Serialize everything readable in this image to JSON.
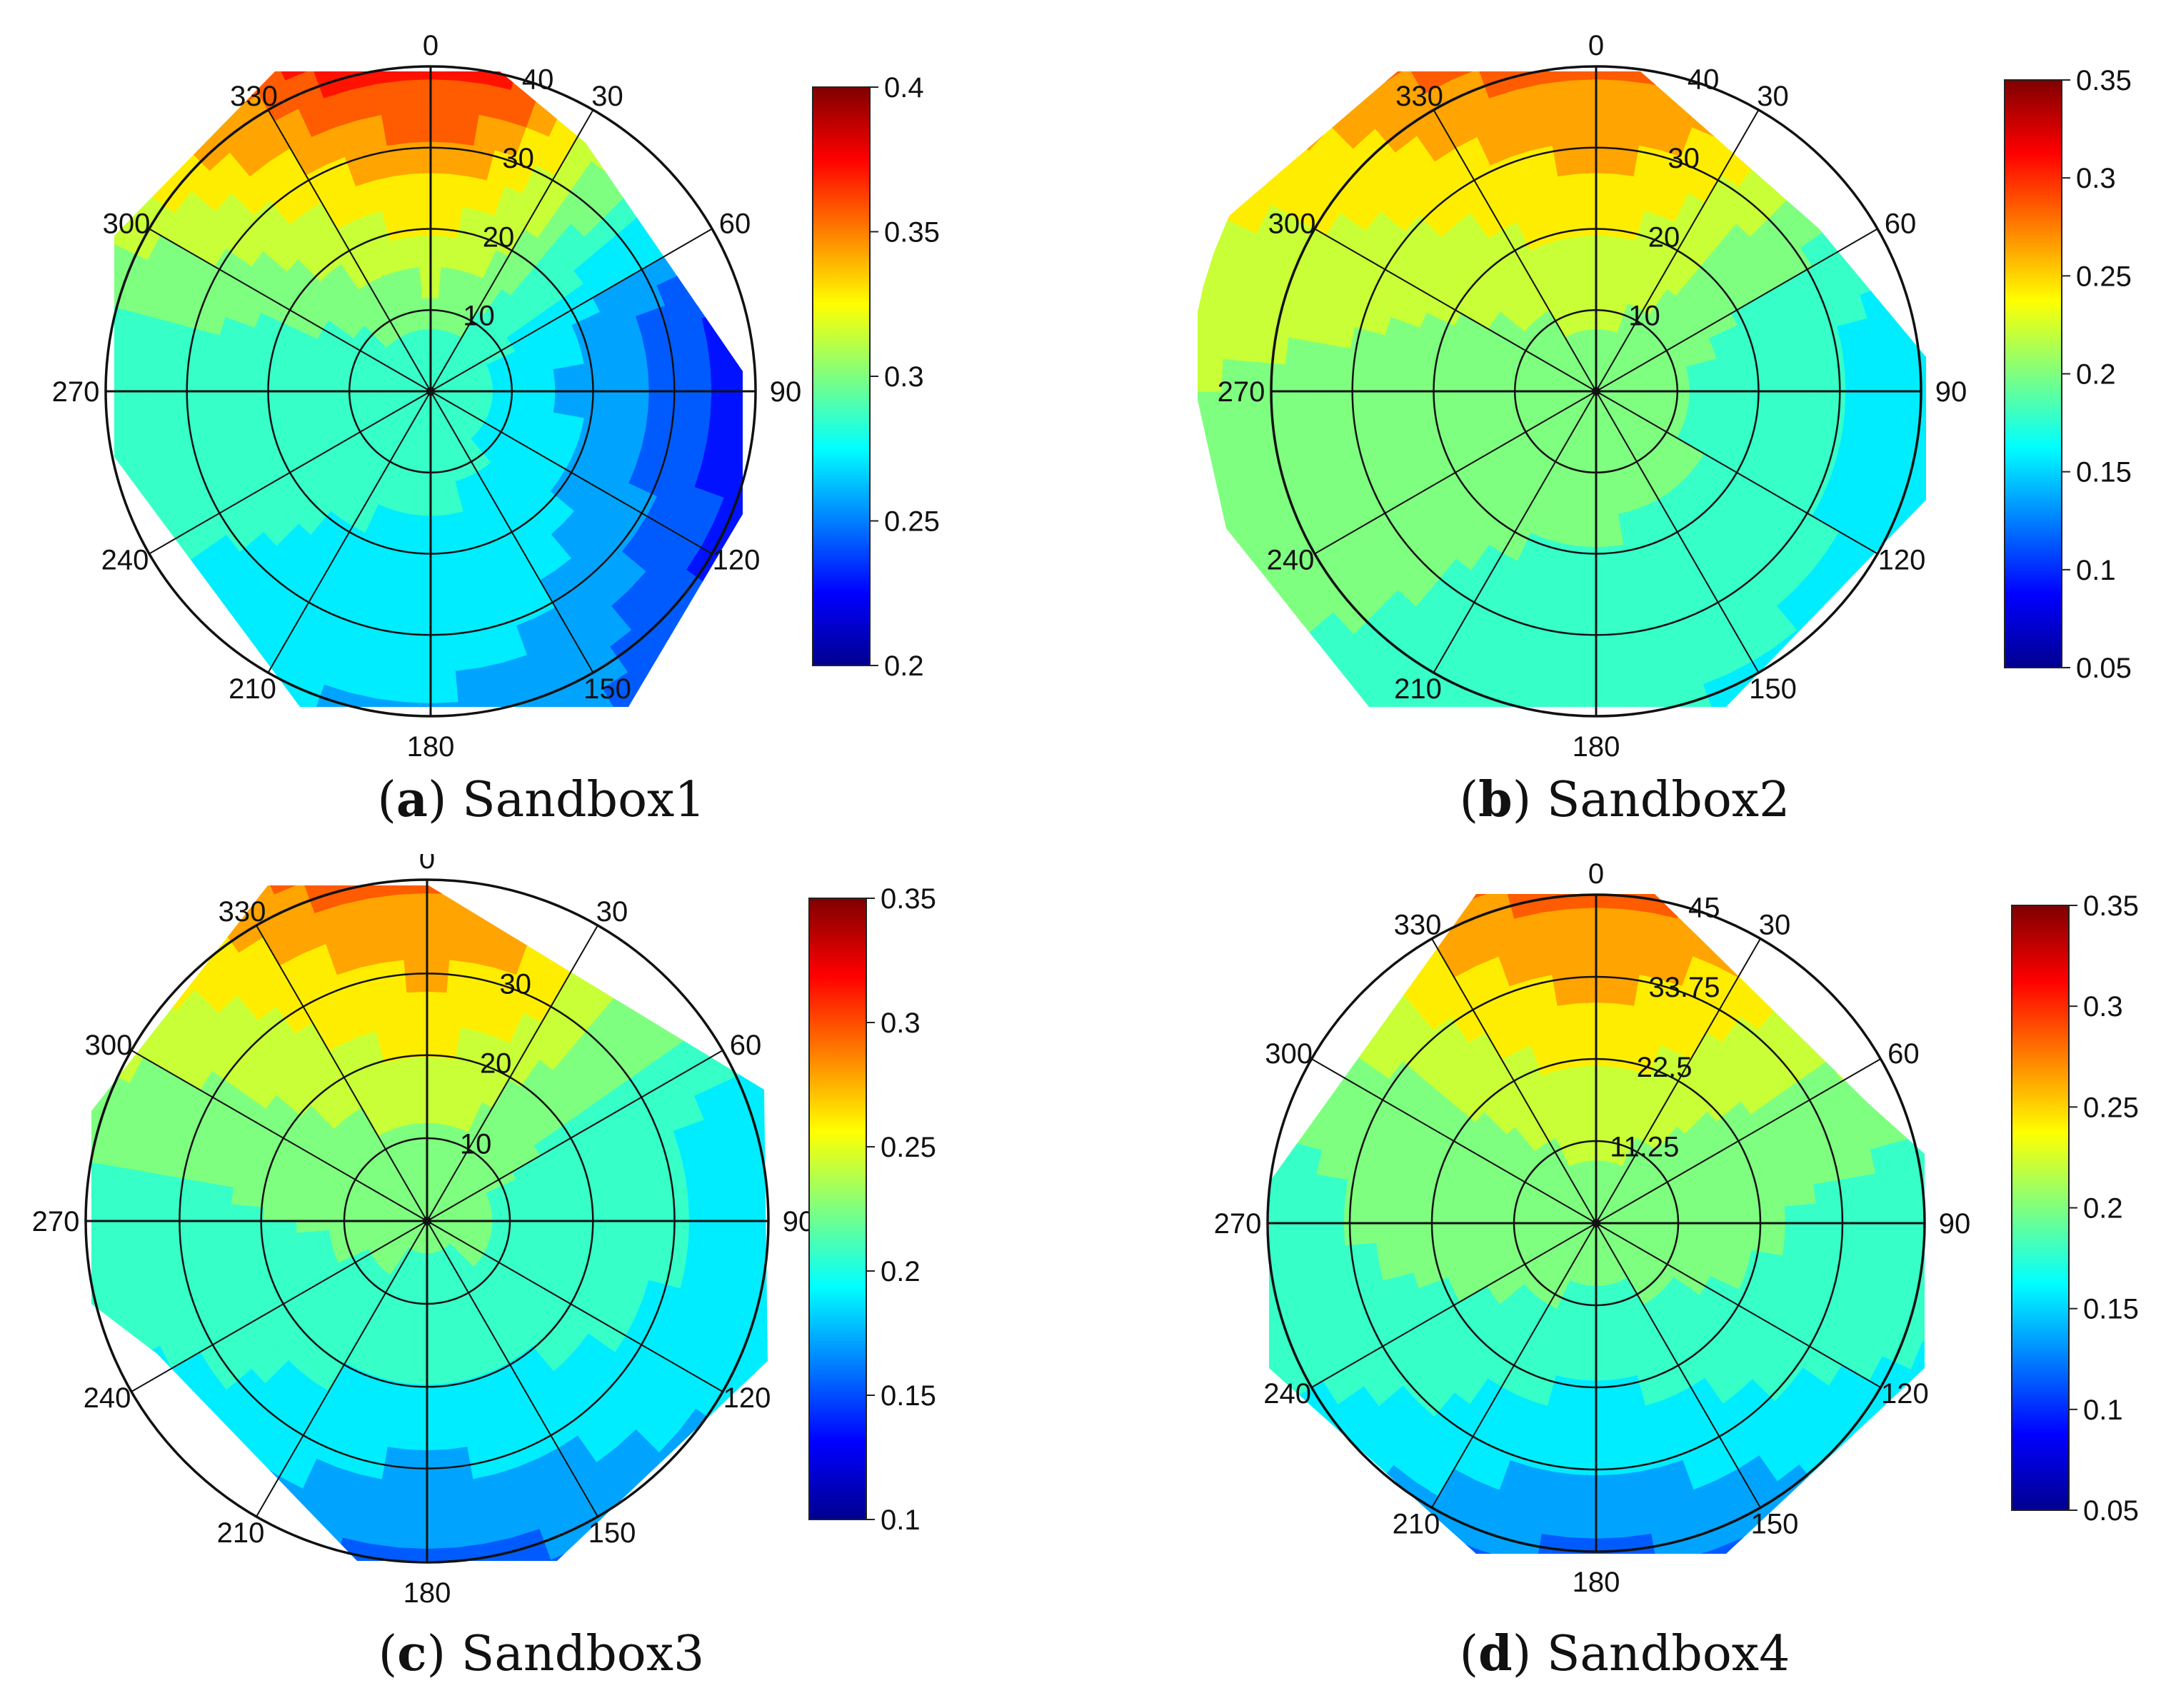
{
  "figure": "Four polar contour plots",
  "colors": {
    "jet": [
      "#00008f",
      "#0000ff",
      "#007fff",
      "#00ffff",
      "#7fff7f",
      "#ffff00",
      "#ff7f00",
      "#ff0000",
      "#7f0000"
    ],
    "axis": "#111111",
    "grid": "#111111"
  },
  "chart_data": [
    {
      "type": "heatmap",
      "subtype": "polar-contour",
      "panel_letter": "a",
      "title": "Sandbox1",
      "angle_labels": [
        "0",
        "30",
        "60",
        "90",
        "120",
        "150",
        "180",
        "210",
        "240",
        "270",
        "300",
        "330"
      ],
      "radial_ticks": [
        "10",
        "20",
        "30",
        "40"
      ],
      "rlim": [
        0,
        40
      ],
      "colorbar": {
        "range": [
          0.2,
          0.4
        ],
        "ticks": [
          "0.2",
          "0.25",
          "0.3",
          "0.35",
          "0.4"
        ]
      },
      "field": {
        "north": 0.4,
        "south": 0.255,
        "east": 0.205,
        "west": 0.285,
        "center": 0.285,
        "north_peak_deg": 355
      }
    },
    {
      "type": "heatmap",
      "subtype": "polar-contour",
      "panel_letter": "b",
      "title": "Sandbox2",
      "angle_labels": [
        "0",
        "30",
        "60",
        "90",
        "120",
        "150",
        "180",
        "210",
        "240",
        "270",
        "300",
        "330"
      ],
      "radial_ticks": [
        "10",
        "20",
        "30",
        "40"
      ],
      "rlim": [
        0,
        40
      ],
      "colorbar": {
        "range": [
          0.05,
          0.35
        ],
        "ticks": [
          "0.05",
          "0.1",
          "0.15",
          "0.2",
          "0.25",
          "0.3",
          "0.35"
        ]
      },
      "field": {
        "north": 0.31,
        "south": 0.16,
        "east": 0.14,
        "west": 0.21,
        "center": 0.2,
        "north_peak_deg": 355
      }
    },
    {
      "type": "heatmap",
      "subtype": "polar-contour",
      "panel_letter": "c",
      "title": "Sandbox3",
      "angle_labels": [
        "0",
        "30",
        "60",
        "90",
        "120",
        "150",
        "180",
        "210",
        "240",
        "270",
        "300",
        "330"
      ],
      "radial_ticks": [
        "10",
        "20",
        "30"
      ],
      "rlim": [
        0,
        40
      ],
      "colorbar": {
        "range": [
          0.1,
          0.35
        ],
        "ticks": [
          "0.1",
          "0.15",
          "0.2",
          "0.25",
          "0.3",
          "0.35"
        ]
      },
      "field": {
        "north": 0.32,
        "south": 0.14,
        "east": 0.18,
        "west": 0.2,
        "center": 0.22,
        "north_peak_deg": 350
      }
    },
    {
      "type": "heatmap",
      "subtype": "polar-contour",
      "panel_letter": "d",
      "title": "Sandbox4",
      "angle_labels": [
        "0",
        "30",
        "60",
        "90",
        "120",
        "150",
        "180",
        "210",
        "240",
        "270",
        "300",
        "330"
      ],
      "radial_ticks": [
        "11.25",
        "22.5",
        "33.75",
        "45"
      ],
      "rlim": [
        0,
        45
      ],
      "colorbar": {
        "range": [
          0.05,
          0.35
        ],
        "ticks": [
          "0.05",
          "0.1",
          "0.15",
          "0.2",
          "0.25",
          "0.3",
          "0.35"
        ]
      },
      "field": {
        "north": 0.31,
        "south": 0.1,
        "east": 0.17,
        "west": 0.18,
        "center": 0.2,
        "north_peak_deg": 5
      }
    }
  ]
}
